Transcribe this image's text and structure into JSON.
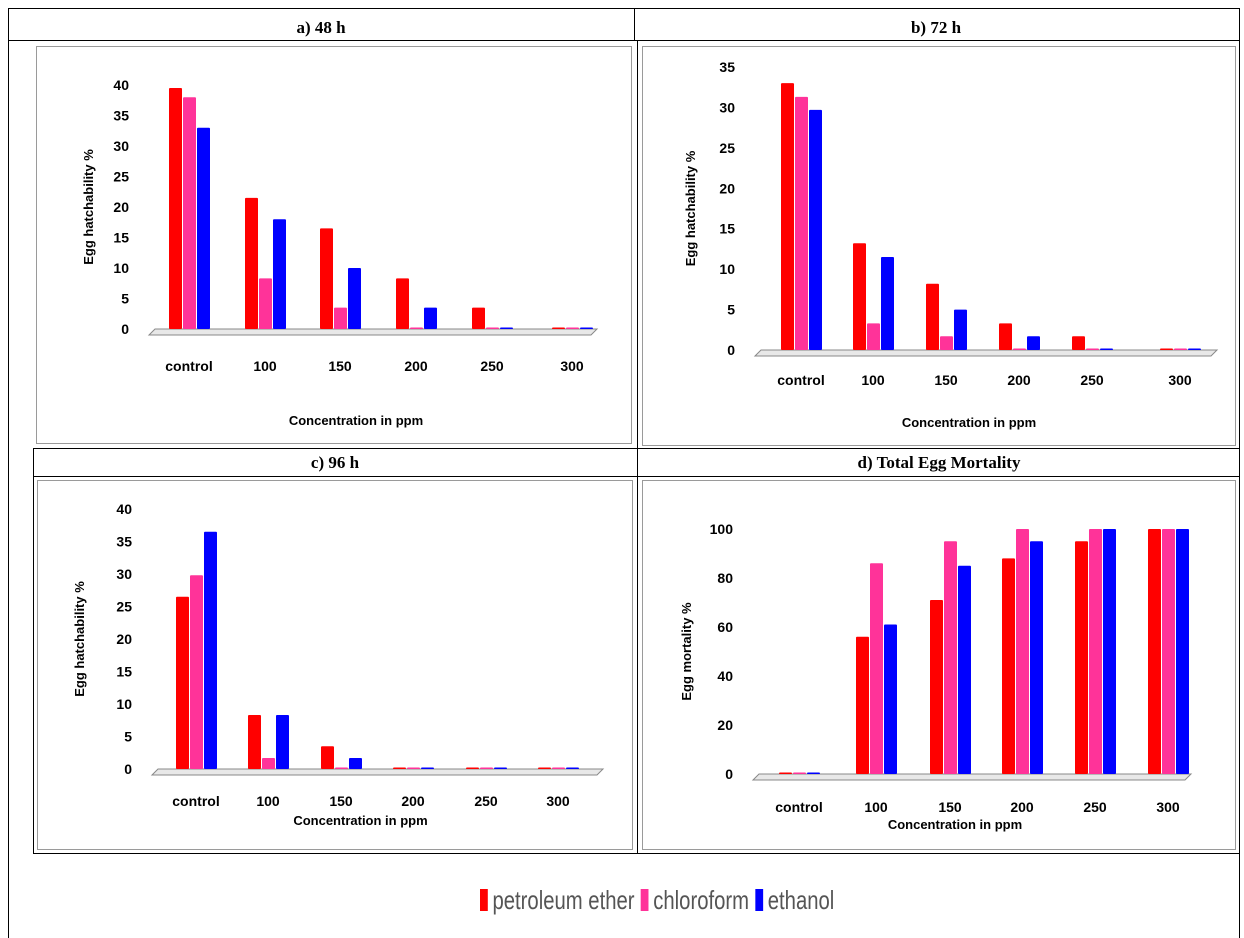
{
  "legend": [
    {
      "name": "petroleum ether",
      "color": "#ff0000"
    },
    {
      "name": "chloroform",
      "color": "#ff3399"
    },
    {
      "name": "ethanol",
      "color": "#0000ff"
    }
  ],
  "chart_data": [
    {
      "type": "bar",
      "title": "a) 48 h",
      "xlabel": "Concentration in ppm",
      "ylabel": "Egg hatchability %",
      "categories": [
        "control",
        "100",
        "150",
        "200",
        "250",
        "300"
      ],
      "ylim": [
        0,
        40
      ],
      "yticks": [
        0,
        5,
        10,
        15,
        20,
        25,
        30,
        35,
        40
      ],
      "series": [
        {
          "name": "petroleum ether",
          "values": [
            39.5,
            21.5,
            16.5,
            8.3,
            3.5,
            0
          ]
        },
        {
          "name": "chloroform",
          "values": [
            38,
            8.3,
            3.5,
            0,
            0,
            0
          ]
        },
        {
          "name": "ethanol",
          "values": [
            33,
            18,
            10,
            3.5,
            0,
            0
          ]
        }
      ]
    },
    {
      "type": "bar",
      "title": "b) 72 h",
      "xlabel": "Concentration in ppm",
      "ylabel": "Egg hatchability %",
      "categories": [
        "control",
        "100",
        "150",
        "200",
        "250",
        "300"
      ],
      "ylim": [
        0,
        35
      ],
      "yticks": [
        0,
        5,
        10,
        15,
        20,
        25,
        30,
        35
      ],
      "series": [
        {
          "name": "petroleum ether",
          "values": [
            33,
            13.2,
            8.2,
            3.3,
            1.7,
            0
          ]
        },
        {
          "name": "chloroform",
          "values": [
            31.3,
            3.3,
            1.7,
            0,
            0,
            0
          ]
        },
        {
          "name": "ethanol",
          "values": [
            29.7,
            11.5,
            5,
            1.7,
            0,
            0
          ]
        }
      ]
    },
    {
      "type": "bar",
      "title": "c) 96 h",
      "xlabel": "Concentration in ppm",
      "ylabel": "Egg hatchability %",
      "categories": [
        "control",
        "100",
        "150",
        "200",
        "250",
        "300"
      ],
      "ylim": [
        0,
        40
      ],
      "yticks": [
        0,
        5,
        10,
        15,
        20,
        25,
        30,
        35,
        40
      ],
      "series": [
        {
          "name": "petroleum ether",
          "values": [
            26.5,
            8.3,
            3.5,
            0,
            0,
            0
          ]
        },
        {
          "name": "chloroform",
          "values": [
            29.8,
            1.7,
            0,
            0,
            0,
            0
          ]
        },
        {
          "name": "ethanol",
          "values": [
            36.5,
            8.3,
            1.7,
            0,
            0,
            0
          ]
        }
      ]
    },
    {
      "type": "bar",
      "title": "d) Total Egg Mortality",
      "xlabel": "Concentration in ppm",
      "ylabel": "Egg mortality %",
      "categories": [
        "control",
        "100",
        "150",
        "200",
        "250",
        "300"
      ],
      "ylim": [
        0,
        100
      ],
      "yticks": [
        0,
        20,
        40,
        60,
        80,
        100
      ],
      "series": [
        {
          "name": "petroleum ether",
          "values": [
            0,
            56,
            71,
            88,
            95,
            100
          ]
        },
        {
          "name": "chloroform",
          "values": [
            0,
            86,
            95,
            100,
            100,
            100
          ]
        },
        {
          "name": "ethanol",
          "values": [
            0,
            61,
            85,
            95,
            100,
            100
          ]
        }
      ]
    }
  ]
}
